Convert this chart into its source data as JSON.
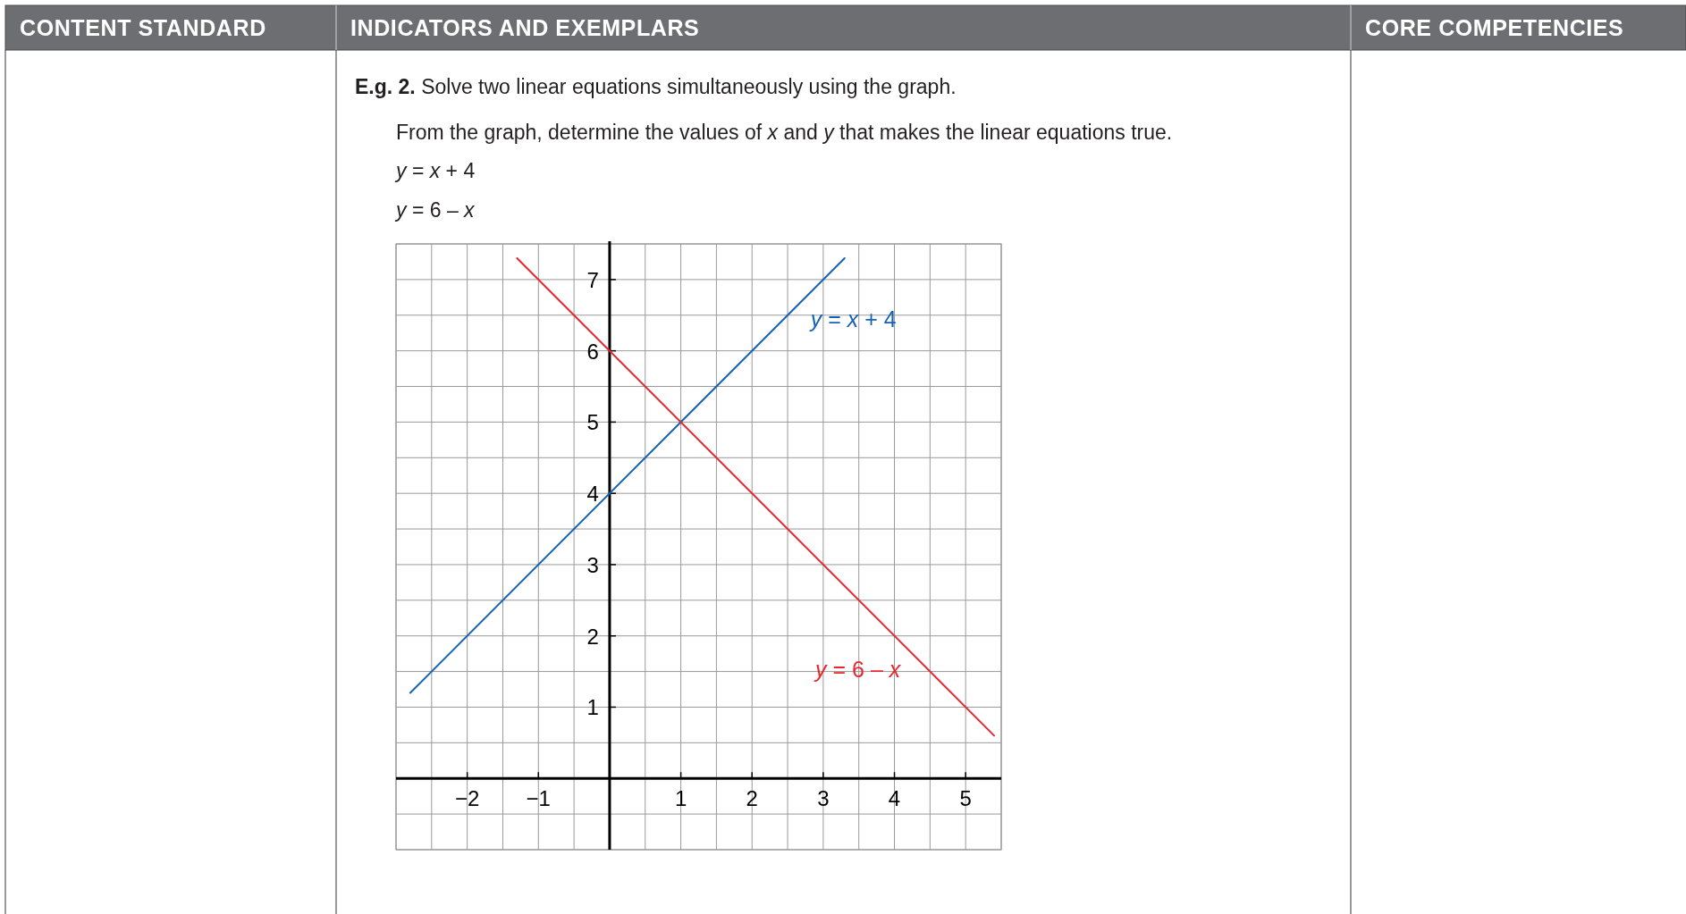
{
  "chart_data": {
    "type": "line",
    "title": "E.g. 2. Solve two linear equations simultaneously using the graph.",
    "subtitle": "From the graph, determine the values of x and y that makes the linear equations true.",
    "annotations": [
      "CONTENT STANDARD",
      "INDICATORS AND EXEMPLARS",
      "CORE COMPETENCIES",
      "y = x + 4",
      "y = 6 – x"
    ],
    "series": [
      {
        "name": "y = x + 4",
        "color": "#1763b3",
        "x": [
          -2.8,
          3.3
        ],
        "values": [
          1.2,
          7.3
        ]
      },
      {
        "name": "y = 6 – x",
        "color": "#e8262e",
        "x": [
          -1.3,
          5.4
        ],
        "values": [
          7.3,
          0.6
        ]
      }
    ],
    "xlim": [
      -3,
      5.5
    ],
    "ylim": [
      -1,
      7.5
    ],
    "xticks": [
      {
        "value": -3,
        "label": null
      },
      {
        "value": -2.5,
        "label": null
      },
      -2,
      {
        "value": -1.5,
        "label": null
      },
      -1,
      {
        "value": -0.5,
        "label": null
      },
      {
        "value": 0,
        "label": null
      },
      {
        "value": 0.5,
        "label": null
      },
      1,
      {
        "value": 1.5,
        "label": null
      },
      2,
      {
        "value": 2.5,
        "label": null
      },
      3,
      {
        "value": 3.5,
        "label": null
      },
      4,
      {
        "value": 4.5,
        "label": null
      },
      5,
      {
        "value": 5.5,
        "label": null
      }
    ],
    "yticks": [
      {
        "value": -1,
        "label": null
      },
      {
        "value": -0.5,
        "label": null
      },
      {
        "value": 0,
        "label": null
      },
      {
        "value": 0.5,
        "label": null
      },
      1,
      {
        "value": 1.5,
        "label": null
      },
      2,
      {
        "value": 2.5,
        "label": null
      },
      3,
      {
        "value": 3.5,
        "label": null
      },
      4,
      {
        "value": 4.5,
        "label": null
      },
      5,
      {
        "value": 5.5,
        "label": null
      },
      6,
      {
        "value": 6.5,
        "label": null
      },
      7,
      {
        "value": 7.5,
        "label": null
      }
    ],
    "grid": true
  }
}
